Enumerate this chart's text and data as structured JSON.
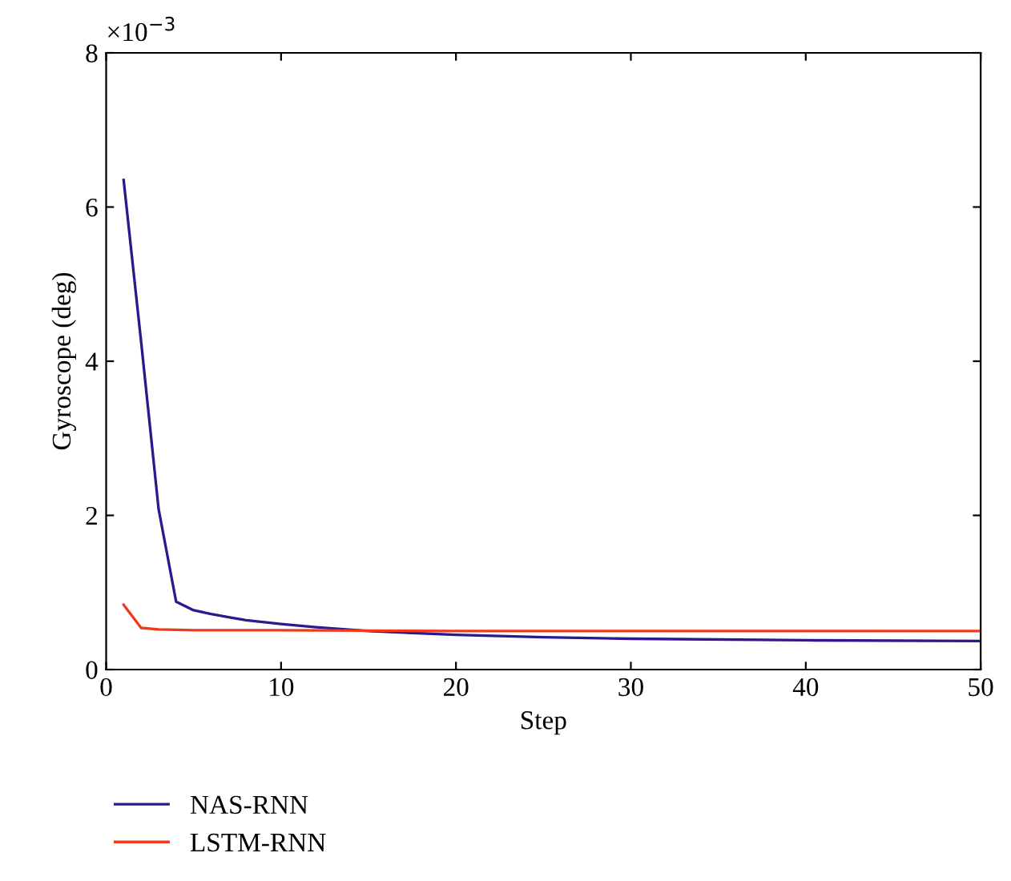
{
  "chart_data": {
    "type": "line",
    "xlabel": "Step",
    "ylabel": "Gyroscope (deg)",
    "annotations": [
      "×10$^{−3}$"
    ],
    "xlim": [
      0,
      50
    ],
    "xticks": [
      0,
      10,
      20,
      30,
      40,
      50
    ],
    "ylim": [
      0,
      8
    ],
    "yticks": [
      0,
      2,
      4,
      6,
      8
    ],
    "grid": false,
    "legend": "bottom left",
    "line_style": "solid",
    "series": [
      {
        "name": "NAS-RNN",
        "color": "#2b1a8c",
        "x": [
          1,
          2,
          3,
          4,
          5,
          6,
          7,
          8,
          10,
          12,
          15,
          20,
          25,
          30,
          40,
          50
        ],
        "values": [
          6.35,
          4.25,
          2.08,
          0.88,
          0.77,
          0.72,
          0.68,
          0.64,
          0.59,
          0.55,
          0.5,
          0.45,
          0.42,
          0.4,
          0.38,
          0.37
        ]
      },
      {
        "name": "LSTM-RNN",
        "color": "#ee3a1d",
        "x": [
          1,
          2,
          3,
          5,
          10,
          20,
          30,
          40,
          50
        ],
        "values": [
          0.84,
          0.54,
          0.52,
          0.51,
          0.51,
          0.5,
          0.5,
          0.5,
          0.5
        ]
      }
    ]
  }
}
